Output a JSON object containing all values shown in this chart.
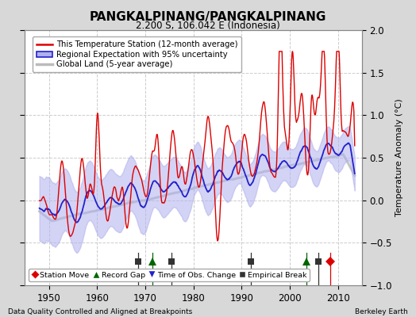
{
  "title": "PANGKALPINANG/PANGKALPINANG",
  "subtitle": "2.200 S, 106.042 E (Indonesia)",
  "xlabel_bottom": "Data Quality Controlled and Aligned at Breakpoints",
  "xlabel_right": "Berkeley Earth",
  "ylabel": "Temperature Anomaly (°C)",
  "xlim": [
    1945,
    2015
  ],
  "ylim": [
    -1.0,
    2.0
  ],
  "yticks": [
    -1,
    -0.5,
    0,
    0.5,
    1,
    1.5,
    2
  ],
  "xticks": [
    1950,
    1960,
    1970,
    1980,
    1990,
    2000,
    2010
  ],
  "background_color": "#d8d8d8",
  "plot_bg_color": "#ffffff",
  "grid_color": "#cccccc",
  "station_line_color": "#dd0000",
  "regional_line_color": "#2222cc",
  "regional_fill_color": "#b0b0ee",
  "global_land_color": "#bbbbbb",
  "markers": [
    {
      "type": "empirical_break",
      "year": 1968.5,
      "color": "#333333"
    },
    {
      "type": "record_gap",
      "year": 1971.5,
      "color": "#006600"
    },
    {
      "type": "empirical_break",
      "year": 1975.5,
      "color": "#333333"
    },
    {
      "type": "empirical_break",
      "year": 1992.0,
      "color": "#333333"
    },
    {
      "type": "record_gap",
      "year": 2003.5,
      "color": "#006600"
    },
    {
      "type": "empirical_break",
      "year": 2006.0,
      "color": "#333333"
    },
    {
      "type": "station_move",
      "year": 2008.5,
      "color": "#dd0000"
    }
  ]
}
